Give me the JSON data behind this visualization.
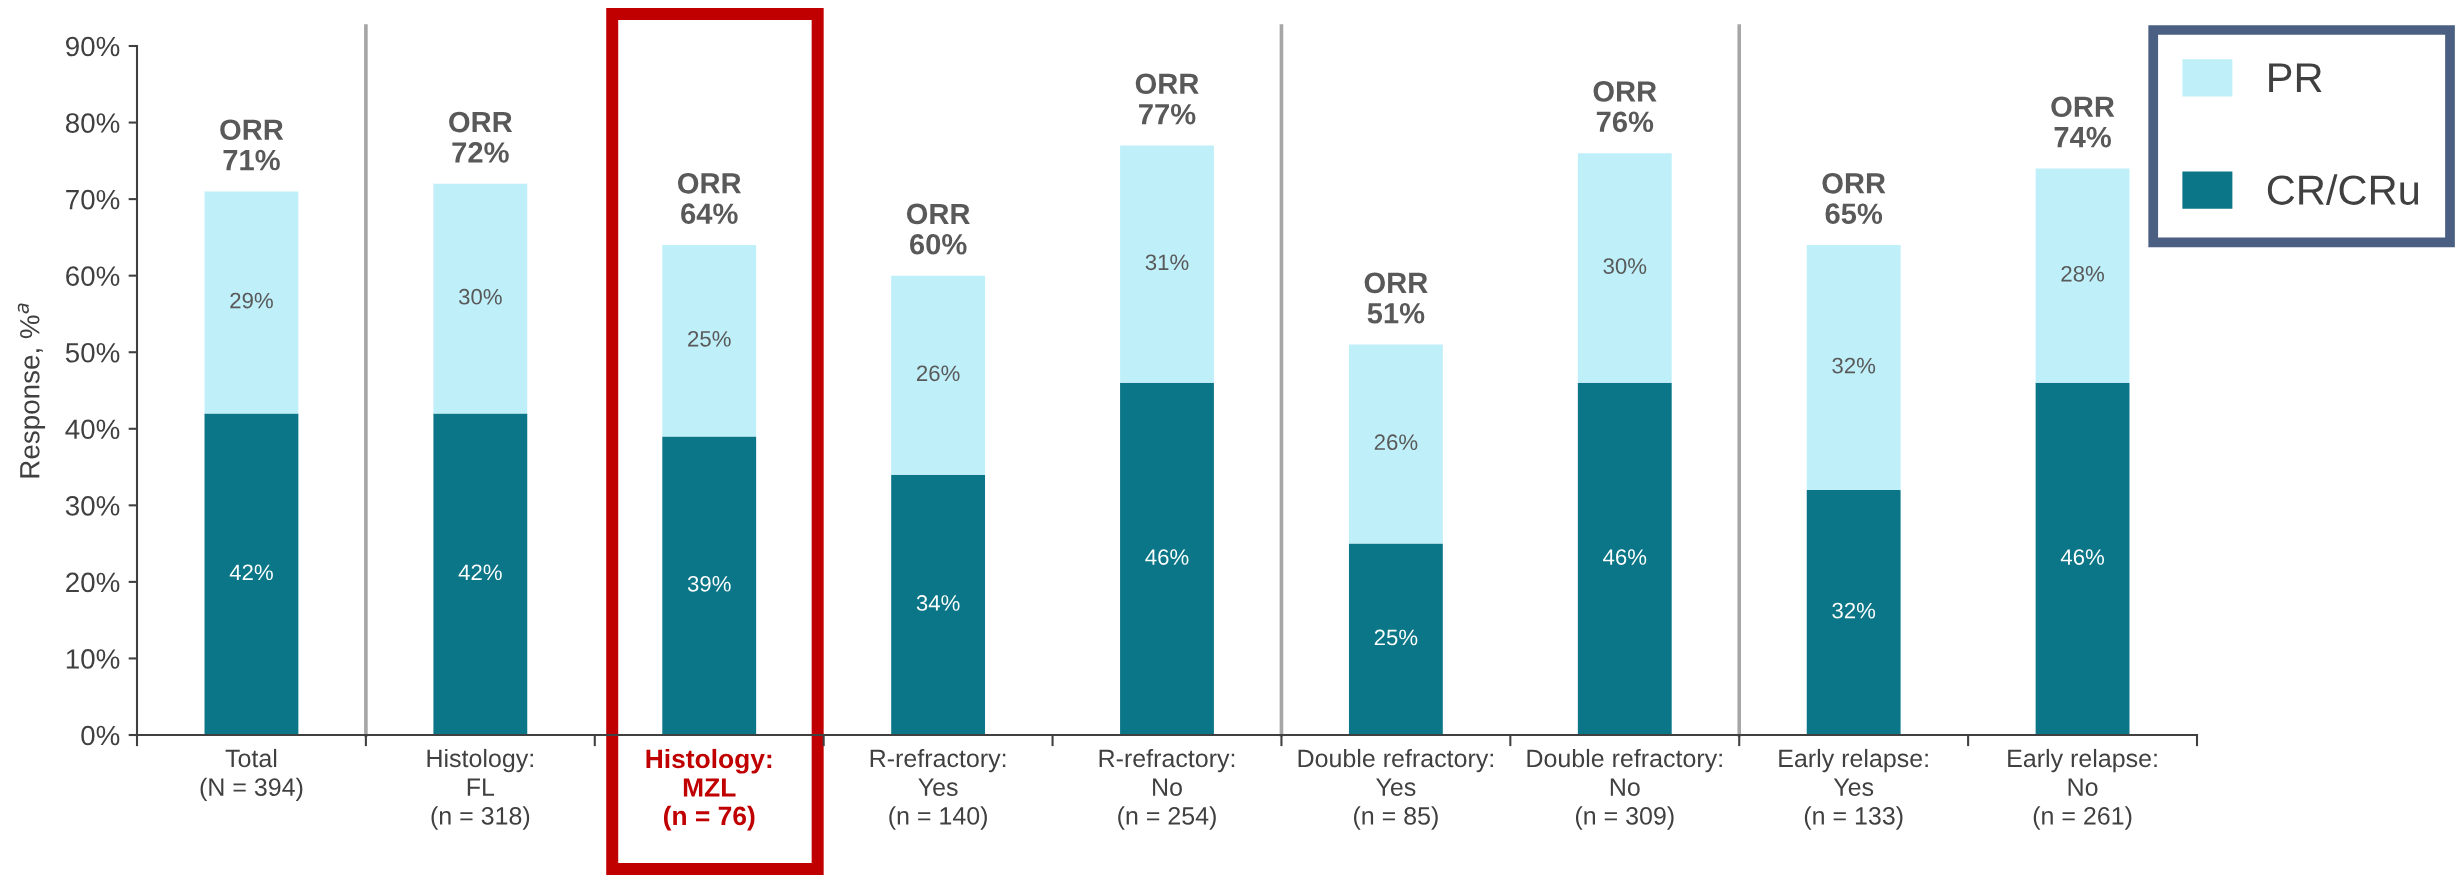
{
  "chart_data": {
    "type": "bar",
    "stacked": true,
    "ylabel": "Response, %$^{a}$",
    "categories": [
      "Total\n(N = 394)",
      "Histology:\nFL\n(n = 318)",
      "Histology:\nMZL\n(n = 76)",
      "R-refractory:\nYes\n(n = 140)",
      "R-refractory:\nNo\n(n = 254)",
      "Double refractory:\nYes\n(n = 85)",
      "Double refractory:\nNo\n(n = 309)",
      "Early relapse:\nYes\n(n = 133)",
      "Early relapse:\nNo\n(n = 261)"
    ],
    "series": [
      {
        "name": "CR/CRu",
        "color": "#0b7687",
        "values": [
          42,
          42,
          39,
          34,
          46,
          25,
          46,
          32,
          46
        ],
        "value_labels": [
          "42%",
          "42%",
          "39%",
          "34%",
          "46%",
          "25%",
          "46%",
          "32%",
          "46%"
        ]
      },
      {
        "name": "PR",
        "color": "#bfeff9",
        "values": [
          29,
          30,
          25,
          26,
          31,
          26,
          30,
          32,
          28
        ],
        "value_labels": [
          "29%",
          "30%",
          "25%",
          "26%",
          "31%",
          "26%",
          "30%",
          "32%",
          "28%"
        ]
      }
    ],
    "totals": [
      "ORR\n71%",
      "ORR\n72%",
      "ORR\n64%",
      "ORR\n60%",
      "ORR\n77%",
      "ORR\n51%",
      "ORR\n76%",
      "ORR\n65%",
      "ORR\n74%"
    ],
    "ylim": [
      0,
      90
    ],
    "yticks": [
      {
        "value": 0,
        "label": "0%"
      },
      {
        "value": 10,
        "label": "10%"
      },
      {
        "value": 20,
        "label": "20%"
      },
      {
        "value": 30,
        "label": "30%"
      },
      {
        "value": 40,
        "label": "40%"
      },
      {
        "value": 50,
        "label": "50%"
      },
      {
        "value": 60,
        "label": "60%"
      },
      {
        "value": 70,
        "label": "70%"
      },
      {
        "value": 80,
        "label": "80%"
      },
      {
        "value": 90,
        "label": "90%"
      }
    ],
    "bands": [
      {
        "axis": "x",
        "from": "Histology:\nMZL\n(n = 76)",
        "to": "Histology:\nMZL\n(n = 76)",
        "color": "#c00000"
      }
    ],
    "legend": "top right"
  }
}
